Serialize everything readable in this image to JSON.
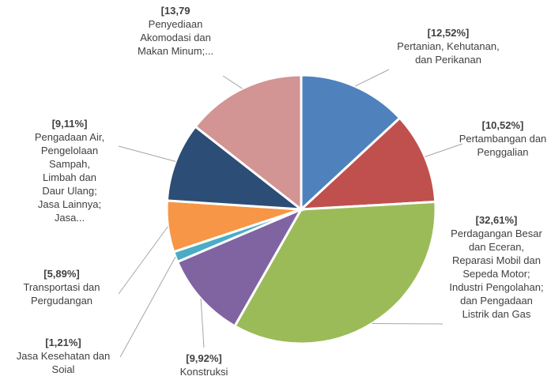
{
  "chart_data": {
    "type": "pie",
    "categories": [
      "Pertanian, Kehutanan, dan Perikanan",
      "Pertambangan dan Penggalian",
      "Perdagangan Besar dan Eceran, Reparasi Mobil dan Sepeda Motor; Industri Pengolahan; dan Pengadaan Listrik dan Gas",
      "Konstruksi",
      "Jasa Kesehatan dan Soial",
      "Transportasi dan Pergudangan",
      "Pengadaan Air, Pengelolaan Sampah, Limbah dan Daur Ulang; Jasa Lainnya; Jasa...",
      "Penyediaan Akomodasi dan Makan Minum;..."
    ],
    "values": [
      12.52,
      10.52,
      32.61,
      9.92,
      1.21,
      5.89,
      9.11,
      13.79
    ],
    "value_labels": [
      "[12,52%]",
      "[10,52%]",
      "[32,61%]",
      "[9,92%]",
      "[1,21%]",
      "[5,89%]",
      "[9,11%]",
      "[13,79"
    ],
    "colors": [
      "#4f81bd",
      "#c0504d",
      "#9bbb59",
      "#8064a2",
      "#4bacc6",
      "#f79646",
      "#2c4d75",
      "#d39494"
    ]
  }
}
